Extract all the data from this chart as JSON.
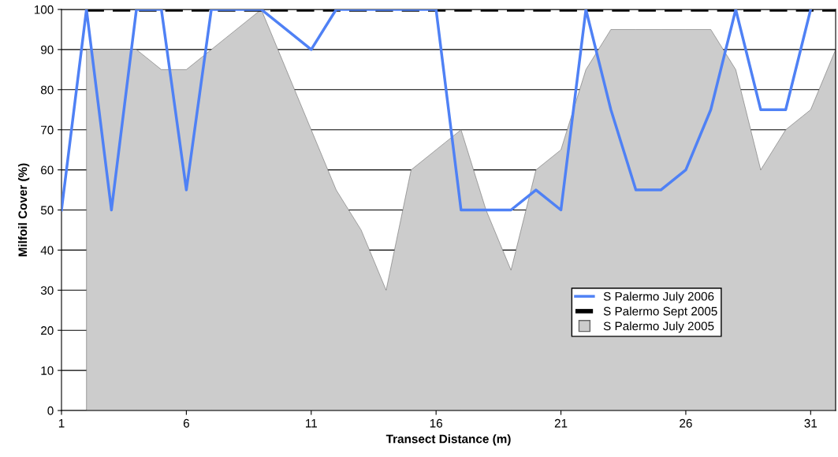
{
  "chart_data": {
    "type": "area",
    "xlabel": "Transect Distance (m)",
    "ylabel": "Milfoil Cover (%)",
    "categories": [
      "1",
      null,
      null,
      null,
      null,
      "6",
      null,
      null,
      null,
      null,
      "11",
      null,
      null,
      null,
      null,
      "16",
      null,
      null,
      null,
      null,
      "21",
      null,
      null,
      null,
      null,
      "26",
      null,
      null,
      null,
      null,
      "31",
      null
    ],
    "series": [
      {
        "name": "S Palermo July 2006",
        "type": "line",
        "color": "#4f81f5",
        "values": [
          50,
          100,
          50,
          100,
          100,
          55,
          100,
          100,
          100,
          95,
          90,
          100,
          100,
          100,
          100,
          100,
          50,
          50,
          50,
          55,
          50,
          100,
          75,
          55,
          55,
          60,
          75,
          100,
          75,
          75,
          100,
          null
        ]
      },
      {
        "name": "S Palermo Sept 2005",
        "type": "line",
        "color": "#000000",
        "line_style": "dashed",
        "values": [
          null,
          100,
          100,
          100,
          100,
          100,
          100,
          100,
          100,
          100,
          100,
          100,
          100,
          100,
          100,
          100,
          100,
          100,
          100,
          100,
          100,
          100,
          100,
          100,
          100,
          100,
          100,
          100,
          100,
          100,
          100,
          100
        ]
      },
      {
        "name": "S Palermo July 2005",
        "color": "#cccccc",
        "values": [
          null,
          90,
          90,
          90,
          85,
          85,
          90,
          95,
          100,
          85,
          70,
          55,
          45,
          30,
          60,
          65,
          70,
          50,
          35,
          60,
          65,
          85,
          95,
          95,
          95,
          95,
          95,
          85,
          60,
          70,
          75,
          90
        ]
      }
    ],
    "ylim": [
      0,
      100
    ],
    "yticks": [
      0,
      10,
      20,
      30,
      40,
      50,
      60,
      70,
      80,
      90,
      100
    ],
    "grid": "y",
    "legend": "lower right",
    "marker": "none"
  }
}
